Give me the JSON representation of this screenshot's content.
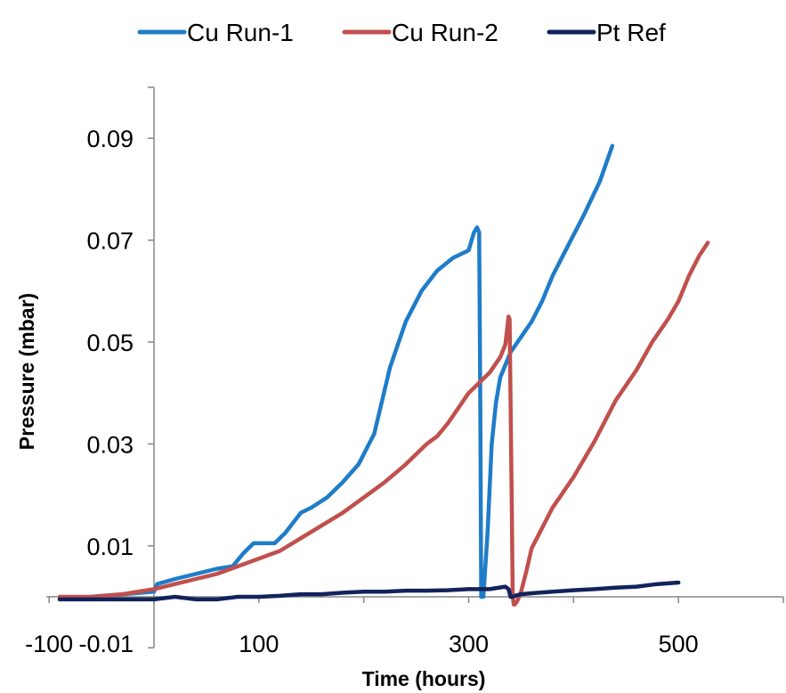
{
  "chart_data": {
    "type": "line",
    "title": "",
    "xlabel": "Time (hours)",
    "ylabel": "Pressure (mbar)",
    "xlim": [
      -100,
      600
    ],
    "ylim": [
      -0.01,
      0.1
    ],
    "x_tick_labels": [
      {
        "value": -100,
        "label": "-100"
      },
      {
        "value": 100,
        "label": "100"
      },
      {
        "value": 300,
        "label": "300"
      },
      {
        "value": 500,
        "label": "500"
      }
    ],
    "y_tick_labels": [
      {
        "value": -0.01,
        "label": "-0.01"
      },
      {
        "value": 0.01,
        "label": "0.01"
      },
      {
        "value": 0.03,
        "label": "0.03"
      },
      {
        "value": 0.05,
        "label": "0.05"
      },
      {
        "value": 0.07,
        "label": "0.07"
      },
      {
        "value": 0.09,
        "label": "0.09"
      }
    ],
    "legend_position": "top",
    "grid": false,
    "series": [
      {
        "name": "Cu Run-1",
        "color": "#1f7cc8",
        "x": [
          -90,
          -60,
          -30,
          0,
          3,
          20,
          40,
          60,
          75,
          85,
          95,
          105,
          115,
          125,
          140,
          150,
          165,
          180,
          195,
          210,
          225,
          240,
          255,
          270,
          285,
          300,
          305,
          308,
          310,
          311,
          312,
          314,
          318,
          322,
          326,
          330,
          340,
          350,
          360,
          370,
          380,
          395,
          410,
          425,
          437
        ],
        "y": [
          -0.0005,
          0,
          0.0005,
          0.001,
          0.0025,
          0.0035,
          0.0045,
          0.0055,
          0.006,
          0.0085,
          0.0105,
          0.0105,
          0.0105,
          0.0125,
          0.0165,
          0.0175,
          0.0195,
          0.0225,
          0.026,
          0.032,
          0.045,
          0.054,
          0.06,
          0.064,
          0.0665,
          0.068,
          0.0715,
          0.0725,
          0.0715,
          0.04,
          0,
          0.0,
          0.0125,
          0.03,
          0.038,
          0.043,
          0.048,
          0.051,
          0.054,
          0.058,
          0.063,
          0.069,
          0.075,
          0.0815,
          0.0885
        ]
      },
      {
        "name": "Cu Run-2",
        "color": "#c0504d",
        "x": [
          -90,
          -60,
          -30,
          0,
          20,
          40,
          60,
          80,
          100,
          120,
          140,
          160,
          180,
          200,
          220,
          240,
          260,
          270,
          280,
          290,
          300,
          310,
          315,
          320,
          325,
          330,
          335,
          338,
          339,
          341,
          342,
          343,
          344,
          346,
          350,
          355,
          360,
          370,
          380,
          400,
          420,
          440,
          460,
          475,
          490,
          500,
          510,
          520,
          528
        ],
        "y": [
          0,
          0,
          0.0005,
          0.0015,
          0.0025,
          0.0035,
          0.0045,
          0.006,
          0.0075,
          0.009,
          0.0115,
          0.014,
          0.0165,
          0.0195,
          0.0225,
          0.026,
          0.03,
          0.0315,
          0.034,
          0.037,
          0.04,
          0.042,
          0.043,
          0.044,
          0.0455,
          0.047,
          0.0495,
          0.055,
          0.0545,
          0.02,
          0.0,
          -0.0015,
          -0.0015,
          -0.001,
          0.001,
          0.005,
          0.0095,
          0.0135,
          0.0175,
          0.0235,
          0.0305,
          0.0385,
          0.0445,
          0.05,
          0.0545,
          0.058,
          0.063,
          0.067,
          0.0695
        ]
      },
      {
        "name": "Pt Ref",
        "color": "#12235c",
        "x": [
          -90,
          -50,
          0,
          20,
          40,
          60,
          80,
          100,
          120,
          140,
          160,
          180,
          200,
          220,
          240,
          260,
          280,
          300,
          320,
          335,
          338,
          340,
          342,
          346,
          350,
          360,
          380,
          400,
          420,
          440,
          460,
          480,
          500
        ],
        "y": [
          -0.0005,
          -0.0005,
          -0.0005,
          0,
          -0.0005,
          -0.0005,
          0,
          0,
          0.0002,
          0.0005,
          0.0005,
          0.0008,
          0.001,
          0.001,
          0.0012,
          0.0012,
          0.0013,
          0.0015,
          0.0015,
          0.002,
          0.0015,
          0,
          0,
          0.0003,
          0.0005,
          0.0007,
          0.001,
          0.0013,
          0.0015,
          0.0018,
          0.002,
          0.0025,
          0.0028
        ]
      }
    ]
  }
}
